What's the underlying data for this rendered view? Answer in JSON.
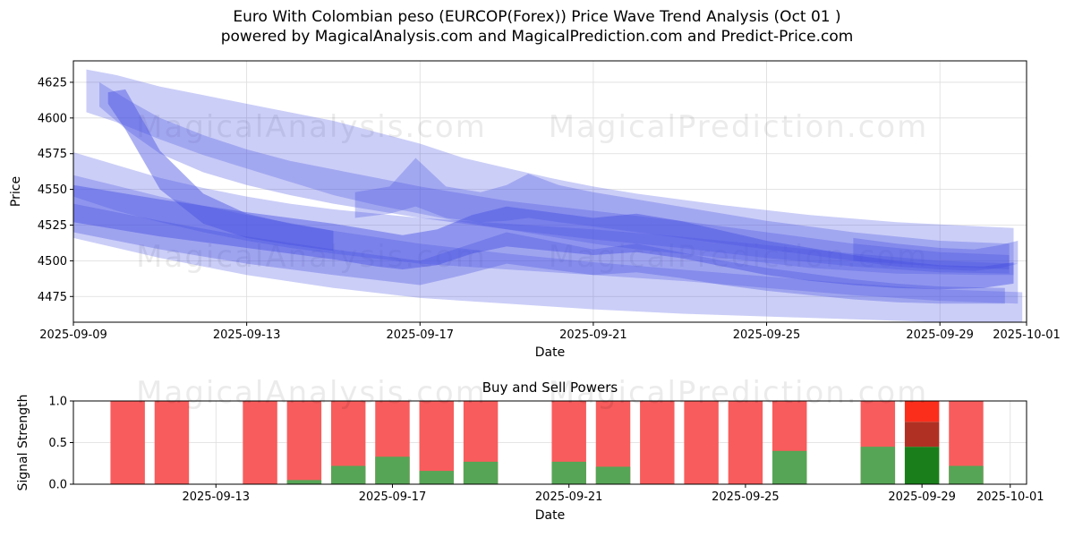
{
  "title": {
    "line1": "Euro With Colombian peso (EURCOP(Forex)) Price Wave Trend Analysis (Oct 01 )",
    "line2": "powered by MagicalAnalysis.com and MagicalPrediction.com and Predict-Price.com"
  },
  "watermarks": {
    "left_text": "MagicalAnalysis.com",
    "right_text": "MagicalPrediction.com",
    "color": "rgba(0,0,0,0.08)"
  },
  "chart_data": [
    {
      "name": "price_wave",
      "type": "area",
      "title": "",
      "xlabel": "Date",
      "ylabel": "Price",
      "x_start_date": "2025-09-09",
      "x_tick_labels": [
        "2025-09-09",
        "2025-09-13",
        "2025-09-17",
        "2025-09-21",
        "2025-09-25",
        "2025-09-29",
        "2025-10-01"
      ],
      "x_tick_days": [
        0,
        4,
        8,
        12,
        16,
        20,
        22
      ],
      "y_ticks": [
        4475,
        4500,
        4525,
        4550,
        4575,
        4600,
        4625
      ],
      "xlim_days": [
        0,
        22
      ],
      "ylim": [
        4457,
        4640
      ],
      "grid": true,
      "band_color": "#4650e2",
      "bands": [
        {
          "opacity": 0.28,
          "points": [
            [
              0.3,
              4634,
              4604
            ],
            [
              1,
              4630,
              4597
            ],
            [
              2,
              4622,
              4585
            ],
            [
              3,
              4616,
              4574
            ],
            [
              4.5,
              4607,
              4560
            ],
            [
              6,
              4598,
              4546
            ],
            [
              7,
              4590,
              4539
            ],
            [
              8,
              4582,
              4533
            ],
            [
              9,
              4572,
              4527
            ],
            [
              10,
              4565,
              4522
            ],
            [
              11,
              4558,
              4517
            ],
            [
              12,
              4552,
              4512
            ],
            [
              13,
              4547,
              4508
            ],
            [
              15,
              4539,
              4502
            ],
            [
              17,
              4532,
              4495
            ],
            [
              19,
              4527,
              4491
            ],
            [
              21,
              4524,
              4490
            ],
            [
              21.7,
              4523,
              4490
            ]
          ]
        },
        {
          "opacity": 0.3,
          "points": [
            [
              0.6,
              4625,
              4608
            ],
            [
              1.3,
              4612,
              4590
            ],
            [
              2,
              4600,
              4575
            ],
            [
              3,
              4588,
              4562
            ],
            [
              4,
              4578,
              4553
            ],
            [
              5,
              4570,
              4546
            ],
            [
              6,
              4564,
              4540
            ],
            [
              7,
              4558,
              4535
            ],
            [
              8,
              4552,
              4530
            ],
            [
              9,
              4547,
              4526
            ],
            [
              10,
              4542,
              4522
            ],
            [
              12,
              4535,
              4515
            ],
            [
              14,
              4528,
              4509
            ],
            [
              16,
              4520,
              4502
            ],
            [
              18,
              4512,
              4496
            ],
            [
              20,
              4506,
              4492
            ],
            [
              21.6,
              4504,
              4491
            ]
          ]
        },
        {
          "opacity": 0.45,
          "points": [
            [
              0.8,
              4618,
              4610
            ],
            [
              1.2,
              4620,
              4592
            ],
            [
              2,
              4577,
              4550
            ],
            [
              3,
              4547,
              4526
            ],
            [
              4,
              4533,
              4516
            ],
            [
              5,
              4526,
              4511
            ],
            [
              6,
              4521,
              4507
            ]
          ]
        },
        {
          "opacity": 0.3,
          "points": [
            [
              6.5,
              4548,
              4530
            ],
            [
              7.3,
              4552,
              4533
            ],
            [
              7.9,
              4572,
              4538
            ],
            [
              8.6,
              4552,
              4530
            ],
            [
              9.4,
              4548,
              4527
            ],
            [
              10,
              4553,
              4528
            ],
            [
              10.5,
              4561,
              4530
            ],
            [
              11.2,
              4553,
              4527
            ],
            [
              12,
              4548,
              4524
            ],
            [
              14,
              4538,
              4516
            ],
            [
              16,
              4528,
              4508
            ],
            [
              18,
              4520,
              4500
            ],
            [
              20,
              4514,
              4496
            ],
            [
              21.6,
              4512,
              4494
            ]
          ]
        },
        {
          "opacity": 0.28,
          "points": [
            [
              0,
              4576,
              4545
            ],
            [
              1,
              4567,
              4535
            ],
            [
              2,
              4558,
              4527
            ],
            [
              3,
              4551,
              4520
            ],
            [
              4,
              4545,
              4514
            ],
            [
              5,
              4540,
              4509
            ],
            [
              6,
              4536,
              4505
            ],
            [
              8,
              4530,
              4498
            ],
            [
              10,
              4526,
              4494
            ],
            [
              12,
              4522,
              4490
            ],
            [
              14,
              4517,
              4486
            ],
            [
              16,
              4511,
              4481
            ],
            [
              18,
              4505,
              4476
            ],
            [
              20,
              4500,
              4472
            ],
            [
              21.8,
              4498,
              4470
            ]
          ]
        },
        {
          "opacity": 0.28,
          "points": [
            [
              0,
              4560,
              4516
            ],
            [
              2,
              4545,
              4502
            ],
            [
              4,
              4532,
              4490
            ],
            [
              6,
              4521,
              4481
            ],
            [
              8,
              4512,
              4474
            ],
            [
              10,
              4505,
              4470
            ],
            [
              12,
              4499,
              4466
            ],
            [
              14,
              4494,
              4463
            ],
            [
              16,
              4489,
              4461
            ],
            [
              18,
              4484,
              4459
            ],
            [
              20,
              4480,
              4457
            ],
            [
              21.9,
              4478,
              4456
            ]
          ]
        },
        {
          "opacity": 0.45,
          "points": [
            [
              0,
              4553,
              4527
            ],
            [
              2,
              4543,
              4517
            ],
            [
              4,
              4534,
              4509
            ],
            [
              6,
              4526,
              4501
            ],
            [
              7,
              4521,
              4496
            ],
            [
              7.6,
              4518,
              4494
            ],
            [
              8.4,
              4522,
              4497
            ],
            [
              9.2,
              4532,
              4505
            ],
            [
              10,
              4538,
              4510
            ],
            [
              11,
              4534,
              4507
            ],
            [
              12,
              4530,
              4504
            ],
            [
              13,
              4533,
              4506
            ],
            [
              14,
              4528,
              4502
            ],
            [
              15,
              4521,
              4496
            ],
            [
              16,
              4514,
              4490
            ],
            [
              17,
              4509,
              4486
            ],
            [
              18,
              4504,
              4483
            ],
            [
              19,
              4500,
              4481
            ],
            [
              20,
              4497,
              4480
            ],
            [
              21,
              4496,
              4481
            ],
            [
              21.7,
              4499,
              4484
            ]
          ]
        },
        {
          "opacity": 0.33,
          "points": [
            [
              0,
              4540,
              4520
            ],
            [
              2,
              4528,
              4508
            ],
            [
              4,
              4517,
              4498
            ],
            [
              6,
              4508,
              4490
            ],
            [
              8,
              4500,
              4483
            ],
            [
              9,
              4510,
              4490
            ],
            [
              10,
              4520,
              4498
            ],
            [
              11,
              4514,
              4494
            ],
            [
              12,
              4508,
              4490
            ],
            [
              13,
              4512,
              4492
            ],
            [
              14,
              4506,
              4488
            ],
            [
              15,
              4500,
              4483
            ],
            [
              16,
              4495,
              4479
            ],
            [
              17,
              4491,
              4476
            ],
            [
              18,
              4487,
              4473
            ],
            [
              19,
              4484,
              4471
            ],
            [
              20,
              4482,
              4470
            ],
            [
              21.5,
              4481,
              4470
            ]
          ]
        },
        {
          "opacity": 0.33,
          "points": [
            [
              18,
              4516,
              4500
            ],
            [
              19,
              4512,
              4496
            ],
            [
              20,
              4509,
              4494
            ],
            [
              20.8,
              4508,
              4493
            ],
            [
              21.4,
              4511,
              4495
            ],
            [
              21.8,
              4514,
              4498
            ]
          ]
        }
      ]
    },
    {
      "name": "buy_sell_powers",
      "type": "bar",
      "title": "Buy and Sell Powers",
      "xlabel": "Date",
      "ylabel": "Signal Strength",
      "x_start_date": "2025-09-09",
      "x_tick_labels": [
        "2025-09-13",
        "2025-09-17",
        "2025-09-21",
        "2025-09-25",
        "2025-09-29",
        "2025-10-01"
      ],
      "x_tick_days": [
        4,
        8,
        12,
        16,
        20,
        22
      ],
      "y_ticks": [
        "0.0",
        "0.5",
        "1.0"
      ],
      "y_tick_values": [
        0,
        0.5,
        1
      ],
      "xlim_days": [
        0.77,
        22.37
      ],
      "ylim": [
        0,
        1
      ],
      "grid": true,
      "bar_width_days": 0.78,
      "sell_color": "#f85c5c",
      "buy_color": "#56a556",
      "bars": [
        {
          "date": "2025-09-11",
          "buy": 0,
          "sell": 1.0
        },
        {
          "date": "2025-09-12",
          "buy": 0,
          "sell": 1.0
        },
        {
          "date": "2025-09-14",
          "buy": 0,
          "sell": 1.0
        },
        {
          "date": "2025-09-15",
          "buy": 0.05,
          "sell": 1.0
        },
        {
          "date": "2025-09-16",
          "buy": 0.22,
          "sell": 1.0
        },
        {
          "date": "2025-09-17",
          "buy": 0.33,
          "sell": 1.0
        },
        {
          "date": "2025-09-18",
          "buy": 0.16,
          "sell": 1.0
        },
        {
          "date": "2025-09-19",
          "buy": 0.27,
          "sell": 1.0
        },
        {
          "date": "2025-09-21",
          "buy": 0.27,
          "sell": 1.0
        },
        {
          "date": "2025-09-22",
          "buy": 0.21,
          "sell": 1.0
        },
        {
          "date": "2025-09-23",
          "buy": 0,
          "sell": 1.0
        },
        {
          "date": "2025-09-24",
          "buy": 0,
          "sell": 1.0
        },
        {
          "date": "2025-09-25",
          "buy": 0,
          "sell": 1.0
        },
        {
          "date": "2025-09-26",
          "buy": 0.4,
          "sell": 1.0
        },
        {
          "date": "2025-09-28",
          "buy": 0.45,
          "sell": 1.0
        },
        {
          "date": "2025-09-30",
          "buy": 0.22,
          "sell": 1.0
        }
      ],
      "special_bar": {
        "date": "2025-09-29",
        "segments": [
          {
            "from": 0,
            "to": 0.45,
            "color": "#1a7f1a"
          },
          {
            "from": 0.45,
            "to": 0.75,
            "color": "#b03123"
          },
          {
            "from": 0.75,
            "to": 1.0,
            "color": "#fb2e1c"
          }
        ]
      }
    }
  ]
}
